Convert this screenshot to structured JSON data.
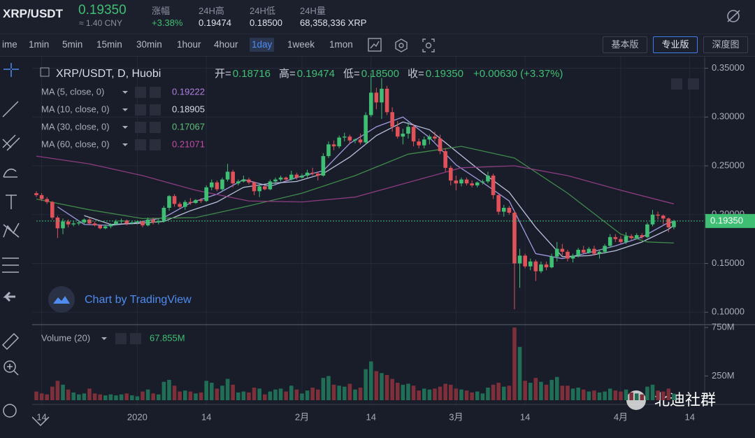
{
  "header": {
    "pair": "XRP/USDT",
    "price": "0.19350",
    "cny": "≈ 1.40 CNY",
    "stats": [
      {
        "label": "涨幅",
        "value": "+3.38%"
      },
      {
        "label": "24H高",
        "value": "0.19474"
      },
      {
        "label": "24H低",
        "value": "0.18500"
      },
      {
        "label": "24H量",
        "value": "68,358,336 XRP"
      }
    ]
  },
  "toolbar": {
    "intervals": [
      "ime",
      "1min",
      "5min",
      "15min",
      "30min",
      "1hour",
      "4hour",
      "1day",
      "1week",
      "1mon"
    ],
    "active_interval": 7,
    "views": [
      "基本版",
      "专业版",
      "深度图"
    ],
    "active_view": 1
  },
  "chart_data": {
    "type": "candlestick",
    "title": "XRP/USDT, D, Huobi",
    "ohlc_legend": [
      {
        "label": "开=",
        "value": "0.18716"
      },
      {
        "label": "高=",
        "value": "0.19474"
      },
      {
        "label": "低=",
        "value": "0.18500"
      },
      {
        "label": "收=",
        "value": "0.19350"
      }
    ],
    "change": "+0.00630 (+3.37%)",
    "up_color": "#3fbf73",
    "down_color": "#e0525a",
    "vol_up_color": "#1f6e55",
    "vol_down_color": "#7d2f3a",
    "xlim": [
      0,
      125.8
    ],
    "ylim": [
      0.088,
      0.359
    ],
    "xticks": [
      {
        "value": 1,
        "label": "14"
      },
      {
        "value": 19,
        "label": "2020"
      },
      {
        "value": 32,
        "label": "14"
      },
      {
        "value": 50,
        "label": "2月"
      },
      {
        "value": 63,
        "label": "14"
      },
      {
        "value": 79,
        "label": "3月"
      },
      {
        "value": 92,
        "label": "14"
      },
      {
        "value": 110,
        "label": "4月"
      },
      {
        "value": 123,
        "label": "14"
      }
    ],
    "yticks": [
      {
        "value": 0.35,
        "label": "0.35000"
      },
      {
        "value": 0.3,
        "label": "0.30000"
      },
      {
        "value": 0.25,
        "label": "0.25000"
      },
      {
        "value": 0.2,
        "label": "0.20000"
      },
      {
        "value": 0.15,
        "label": "0.15000"
      },
      {
        "value": 0.1,
        "label": "0.10000"
      }
    ],
    "grid": true,
    "open": [
      0.222,
      0.22,
      0.216,
      0.213,
      0.197,
      0.186,
      0.193,
      0.19,
      0.191,
      0.192,
      0.195,
      0.191,
      0.189,
      0.186,
      0.188,
      0.19,
      0.193,
      0.194,
      0.191,
      0.192,
      0.193,
      0.189,
      0.195,
      0.192,
      0.193,
      0.207,
      0.219,
      0.211,
      0.208,
      0.213,
      0.212,
      0.215,
      0.214,
      0.228,
      0.233,
      0.226,
      0.236,
      0.244,
      0.232,
      0.234,
      0.236,
      0.233,
      0.224,
      0.229,
      0.226,
      0.234,
      0.236,
      0.238,
      0.236,
      0.241,
      0.238,
      0.24,
      0.243,
      0.242,
      0.24,
      0.26,
      0.272,
      0.27,
      0.279,
      0.28,
      0.276,
      0.277,
      0.274,
      0.302,
      0.325,
      0.315,
      0.329,
      0.305,
      0.29,
      0.28,
      0.283,
      0.29,
      0.275,
      0.271,
      0.277,
      0.28,
      0.278,
      0.265,
      0.248,
      0.235,
      0.232,
      0.236,
      0.232,
      0.23,
      0.233,
      0.234,
      0.24,
      0.22,
      0.203,
      0.207,
      0.202,
      0.15,
      0.158,
      0.147,
      0.152,
      0.142,
      0.149,
      0.146,
      0.157,
      0.165,
      0.162,
      0.155,
      0.158,
      0.164,
      0.161,
      0.165,
      0.16,
      0.162,
      0.168,
      0.177,
      0.175,
      0.172,
      0.178,
      0.176,
      0.179,
      0.177,
      0.19,
      0.2,
      0.199,
      0.196,
      0.18716
    ],
    "high": [
      0.224,
      0.222,
      0.218,
      0.214,
      0.199,
      0.196,
      0.195,
      0.193,
      0.193,
      0.196,
      0.197,
      0.193,
      0.19,
      0.19,
      0.191,
      0.195,
      0.196,
      0.195,
      0.193,
      0.194,
      0.194,
      0.197,
      0.197,
      0.196,
      0.209,
      0.22,
      0.221,
      0.213,
      0.215,
      0.217,
      0.216,
      0.217,
      0.23,
      0.236,
      0.235,
      0.238,
      0.252,
      0.246,
      0.236,
      0.24,
      0.238,
      0.234,
      0.232,
      0.23,
      0.236,
      0.238,
      0.24,
      0.239,
      0.245,
      0.243,
      0.242,
      0.246,
      0.248,
      0.244,
      0.263,
      0.275,
      0.276,
      0.281,
      0.284,
      0.282,
      0.278,
      0.283,
      0.305,
      0.345,
      0.33,
      0.34,
      0.332,
      0.31,
      0.296,
      0.288,
      0.295,
      0.293,
      0.278,
      0.28,
      0.282,
      0.285,
      0.282,
      0.268,
      0.25,
      0.24,
      0.238,
      0.238,
      0.235,
      0.234,
      0.236,
      0.244,
      0.242,
      0.221,
      0.21,
      0.209,
      0.204,
      0.165,
      0.16,
      0.155,
      0.154,
      0.152,
      0.152,
      0.16,
      0.172,
      0.17,
      0.164,
      0.16,
      0.166,
      0.168,
      0.167,
      0.168,
      0.164,
      0.17,
      0.18,
      0.18,
      0.178,
      0.182,
      0.18,
      0.181,
      0.181,
      0.192,
      0.205,
      0.203,
      0.2,
      0.197,
      0.19474
    ],
    "low": [
      0.218,
      0.214,
      0.211,
      0.195,
      0.176,
      0.18,
      0.187,
      0.188,
      0.189,
      0.19,
      0.19,
      0.188,
      0.185,
      0.185,
      0.186,
      0.189,
      0.191,
      0.189,
      0.19,
      0.19,
      0.187,
      0.188,
      0.19,
      0.19,
      0.192,
      0.204,
      0.208,
      0.206,
      0.205,
      0.21,
      0.211,
      0.212,
      0.213,
      0.225,
      0.224,
      0.224,
      0.234,
      0.228,
      0.23,
      0.233,
      0.231,
      0.22,
      0.218,
      0.225,
      0.225,
      0.23,
      0.234,
      0.234,
      0.235,
      0.236,
      0.237,
      0.238,
      0.24,
      0.235,
      0.239,
      0.258,
      0.266,
      0.268,
      0.275,
      0.273,
      0.273,
      0.272,
      0.272,
      0.3,
      0.308,
      0.298,
      0.302,
      0.285,
      0.278,
      0.272,
      0.278,
      0.27,
      0.268,
      0.268,
      0.272,
      0.275,
      0.262,
      0.244,
      0.23,
      0.225,
      0.229,
      0.23,
      0.228,
      0.228,
      0.231,
      0.232,
      0.216,
      0.2,
      0.198,
      0.2,
      0.103,
      0.125,
      0.145,
      0.143,
      0.132,
      0.14,
      0.143,
      0.145,
      0.152,
      0.158,
      0.152,
      0.151,
      0.156,
      0.16,
      0.16,
      0.158,
      0.155,
      0.16,
      0.166,
      0.172,
      0.17,
      0.17,
      0.174,
      0.175,
      0.175,
      0.176,
      0.188,
      0.195,
      0.19,
      0.182,
      0.185
    ],
    "close": [
      0.22,
      0.216,
      0.213,
      0.197,
      0.186,
      0.193,
      0.19,
      0.191,
      0.192,
      0.195,
      0.191,
      0.189,
      0.186,
      0.188,
      0.19,
      0.193,
      0.194,
      0.191,
      0.192,
      0.193,
      0.189,
      0.195,
      0.192,
      0.193,
      0.207,
      0.219,
      0.211,
      0.208,
      0.213,
      0.212,
      0.215,
      0.214,
      0.228,
      0.233,
      0.226,
      0.236,
      0.244,
      0.232,
      0.234,
      0.236,
      0.233,
      0.224,
      0.229,
      0.226,
      0.234,
      0.236,
      0.238,
      0.236,
      0.241,
      0.238,
      0.24,
      0.243,
      0.242,
      0.24,
      0.26,
      0.272,
      0.27,
      0.279,
      0.28,
      0.276,
      0.277,
      0.274,
      0.302,
      0.325,
      0.315,
      0.329,
      0.305,
      0.29,
      0.28,
      0.283,
      0.29,
      0.275,
      0.271,
      0.277,
      0.28,
      0.278,
      0.265,
      0.248,
      0.235,
      0.232,
      0.236,
      0.232,
      0.23,
      0.233,
      0.234,
      0.24,
      0.22,
      0.203,
      0.207,
      0.202,
      0.15,
      0.158,
      0.147,
      0.152,
      0.142,
      0.149,
      0.146,
      0.157,
      0.165,
      0.162,
      0.155,
      0.158,
      0.164,
      0.161,
      0.165,
      0.16,
      0.162,
      0.168,
      0.177,
      0.175,
      0.172,
      0.178,
      0.176,
      0.179,
      0.177,
      0.19,
      0.2,
      0.199,
      0.196,
      0.187,
      0.1935
    ],
    "ma_series": [
      {
        "name": "MA (5, close, 0)",
        "last_label": "0.19222",
        "color": "#9f9be0",
        "label_color": "#b07fe0",
        "x": [
          4,
          9,
          14,
          19,
          24,
          29,
          34,
          39,
          44,
          49,
          54,
          59,
          64,
          69,
          74,
          79,
          84,
          89,
          94,
          99,
          104,
          109,
          114,
          119,
          120
        ],
        "values": [
          0.208,
          0.19,
          0.189,
          0.192,
          0.197,
          0.212,
          0.221,
          0.236,
          0.229,
          0.238,
          0.245,
          0.273,
          0.29,
          0.3,
          0.279,
          0.251,
          0.233,
          0.214,
          0.16,
          0.155,
          0.161,
          0.168,
          0.177,
          0.192,
          0.192
        ]
      },
      {
        "name": "MA (10, close, 0)",
        "last_label": "0.18905",
        "color": "#b9c2dc",
        "label_color": "#d6dbe8",
        "x": [
          9,
          14,
          19,
          24,
          29,
          34,
          39,
          44,
          49,
          54,
          59,
          64,
          69,
          74,
          79,
          84,
          89,
          94,
          99,
          104,
          109,
          114,
          119,
          120
        ],
        "values": [
          0.199,
          0.19,
          0.191,
          0.193,
          0.204,
          0.213,
          0.228,
          0.232,
          0.234,
          0.242,
          0.259,
          0.281,
          0.295,
          0.287,
          0.265,
          0.243,
          0.223,
          0.187,
          0.157,
          0.158,
          0.163,
          0.172,
          0.185,
          0.189
        ]
      },
      {
        "name": "MA (30, close, 0)",
        "last_label": "0.17067",
        "color": "#3f8a4a",
        "label_color": "#5fc07a",
        "x": [
          0,
          10,
          20,
          30,
          40,
          50,
          60,
          70,
          80,
          90,
          100,
          110,
          115,
          120
        ],
        "values": [
          0.216,
          0.205,
          0.196,
          0.197,
          0.209,
          0.222,
          0.24,
          0.262,
          0.27,
          0.258,
          0.222,
          0.18,
          0.172,
          0.171
        ]
      },
      {
        "name": "MA (60, close, 0)",
        "last_label": "0.21071",
        "color": "#8c3c80",
        "label_color": "#c44aa8",
        "x": [
          0,
          10,
          20,
          30,
          40,
          50,
          60,
          70,
          80,
          90,
          100,
          110,
          120
        ],
        "values": [
          0.26,
          0.252,
          0.24,
          0.225,
          0.214,
          0.213,
          0.218,
          0.233,
          0.248,
          0.25,
          0.24,
          0.225,
          0.211
        ]
      }
    ],
    "volume_name": "Volume (20)",
    "volume_last": "67.855M",
    "vol_ylim": [
      0,
      765
    ],
    "vol_yticks": [
      {
        "value": 750,
        "label": "750M"
      },
      {
        "value": 250,
        "label": "250M"
      }
    ],
    "volume": [
      90,
      70,
      60,
      140,
      200,
      160,
      110,
      80,
      60,
      70,
      120,
      70,
      60,
      50,
      60,
      50,
      60,
      70,
      50,
      40,
      90,
      110,
      70,
      60,
      190,
      210,
      150,
      90,
      100,
      90,
      70,
      80,
      200,
      180,
      120,
      150,
      220,
      160,
      80,
      90,
      80,
      130,
      120,
      60,
      90,
      110,
      120,
      90,
      150,
      110,
      70,
      100,
      130,
      110,
      230,
      250,
      160,
      150,
      140,
      170,
      110,
      130,
      320,
      400,
      300,
      280,
      260,
      220,
      180,
      160,
      170,
      150,
      100,
      120,
      110,
      120,
      140,
      170,
      160,
      120,
      110,
      100,
      80,
      90,
      70,
      130,
      160,
      180,
      140,
      150,
      750,
      550,
      200,
      180,
      230,
      190,
      160,
      210,
      240,
      150,
      150,
      120,
      130,
      110,
      90,
      100,
      80,
      90,
      120,
      100,
      90,
      110,
      80,
      70,
      60,
      140,
      160,
      100,
      90,
      120,
      67.855
    ],
    "watermark": "Chart by TradingView",
    "brand": "北迪社群"
  }
}
